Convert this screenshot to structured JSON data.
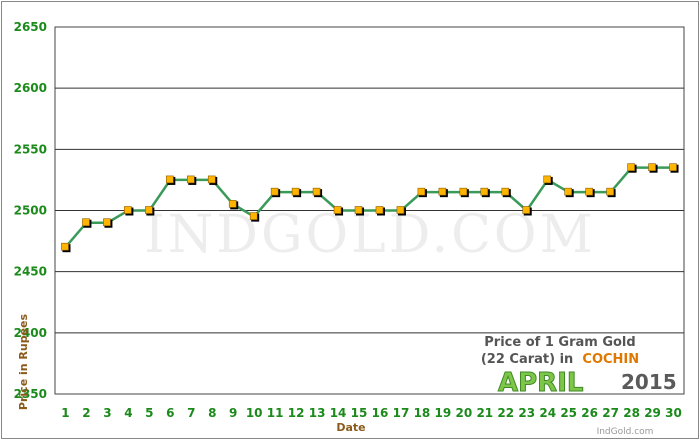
{
  "chart_data": {
    "type": "line",
    "xlabel": "Date",
    "ylabel": "Price in Rupees",
    "ylim": [
      2350,
      2650
    ],
    "yticks": [
      2350,
      2400,
      2450,
      2500,
      2550,
      2600,
      2650
    ],
    "grid": true,
    "x": [
      1,
      2,
      3,
      4,
      5,
      6,
      7,
      8,
      9,
      10,
      11,
      12,
      13,
      14,
      15,
      16,
      17,
      18,
      19,
      20,
      21,
      22,
      23,
      24,
      25,
      26,
      27,
      28,
      29,
      30
    ],
    "series": [
      {
        "values": [
          2470,
          2490,
          2490,
          2500,
          2500,
          2525,
          2525,
          2525,
          2505,
          2495,
          2515,
          2515,
          2515,
          2500,
          2500,
          2500,
          2500,
          2515,
          2515,
          2515,
          2515,
          2515,
          2500,
          2525,
          2515,
          2515,
          2515,
          2535,
          2535,
          2535
        ]
      }
    ],
    "colors": {
      "line": "#3a9a5a",
      "marker": "#ffb400",
      "marker_shadow": "#000000",
      "ticks": "#1b8a1b",
      "axis_title": "#8a5a1a"
    }
  },
  "watermark": "INDGOLD.COM",
  "caption": {
    "line1": "Price of 1 Gram Gold",
    "line2_prefix": "(22 Carat) in",
    "city": "COCHIN",
    "month": "APRIL",
    "year": "2015",
    "site": "IndGold.com"
  }
}
